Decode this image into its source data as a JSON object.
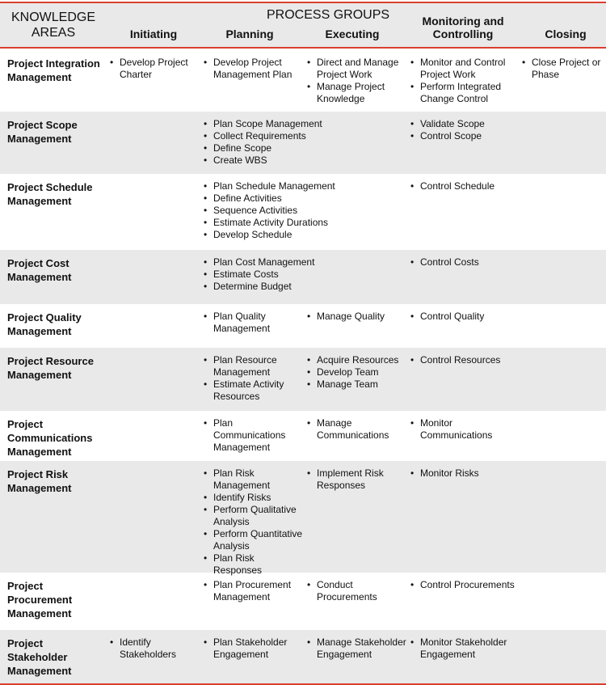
{
  "header": {
    "knowledge_areas": "KNOWLEDGE AREAS",
    "process_groups": "PROCESS GROUPS",
    "columns": [
      "Initiating",
      "Planning",
      "Executing",
      "Monitoring and Controlling",
      "Closing"
    ]
  },
  "rows": [
    {
      "name": "Project Integration Management",
      "cells": [
        [
          "Develop Project Charter"
        ],
        [
          "Develop Project Management Plan"
        ],
        [
          "Direct and Manage Project Work",
          "Manage Project Knowledge"
        ],
        [
          "Monitor and Control Project Work",
          "Perform Integrated Change Control"
        ],
        [
          "Close Project or Phase"
        ]
      ]
    },
    {
      "name": "Project Scope Management",
      "cells": [
        [],
        [
          "Plan Scope Management",
          "Collect Requirements",
          "Define Scope",
          "Create WBS"
        ],
        [],
        [
          "Validate Scope",
          "Control Scope"
        ],
        []
      ]
    },
    {
      "name": "Project Schedule Management",
      "cells": [
        [],
        [
          "Plan Schedule Management",
          "Define Activities",
          "Sequence Activities",
          "Estimate Activity Durations",
          "Develop Schedule"
        ],
        [],
        [
          "Control Schedule"
        ],
        []
      ]
    },
    {
      "name": "Project Cost Management",
      "cells": [
        [],
        [
          "Plan Cost Management",
          "Estimate Costs",
          "Determine Budget"
        ],
        [],
        [
          "Control Costs"
        ],
        []
      ]
    },
    {
      "name": "Project Quality Management",
      "cells": [
        [],
        [
          "Plan Quality Management"
        ],
        [
          "Manage Quality"
        ],
        [
          "Control Quality"
        ],
        []
      ]
    },
    {
      "name": "Project Resource Management",
      "cells": [
        [],
        [
          "Plan Resource Management",
          "Estimate Activity Resources"
        ],
        [
          "Acquire Resources",
          "Develop Team",
          "Manage Team"
        ],
        [
          "Control Resources"
        ],
        []
      ]
    },
    {
      "name": "Project Communications Management",
      "cells": [
        [],
        [
          "Plan Communications Management"
        ],
        [
          "Manage Communications"
        ],
        [
          "Monitor Communications"
        ],
        []
      ]
    },
    {
      "name": "Project Risk Management",
      "cells": [
        [],
        [
          "Plan Risk Management",
          "Identify Risks",
          "Perform Qualitative Analysis",
          "Perform Quantitative Analysis",
          "Plan Risk Responses"
        ],
        [
          "Implement Risk Responses"
        ],
        [
          "Monitor Risks"
        ],
        []
      ]
    },
    {
      "name": "Project Procurement Management",
      "cells": [
        [],
        [
          "Plan Procurement Management"
        ],
        [
          "Conduct Procurements"
        ],
        [
          "Control Procurements"
        ],
        []
      ]
    },
    {
      "name": "Project Stakeholder Management",
      "cells": [
        [
          "Identify Stakeholders"
        ],
        [
          "Plan Stakeholder Engagement"
        ],
        [
          "Manage Stakeholder Engagement"
        ],
        [
          "Monitor Stakeholder Engagement"
        ],
        []
      ]
    }
  ],
  "colors": {
    "accent": "#d9402e",
    "shade": "#e9e9e9"
  }
}
